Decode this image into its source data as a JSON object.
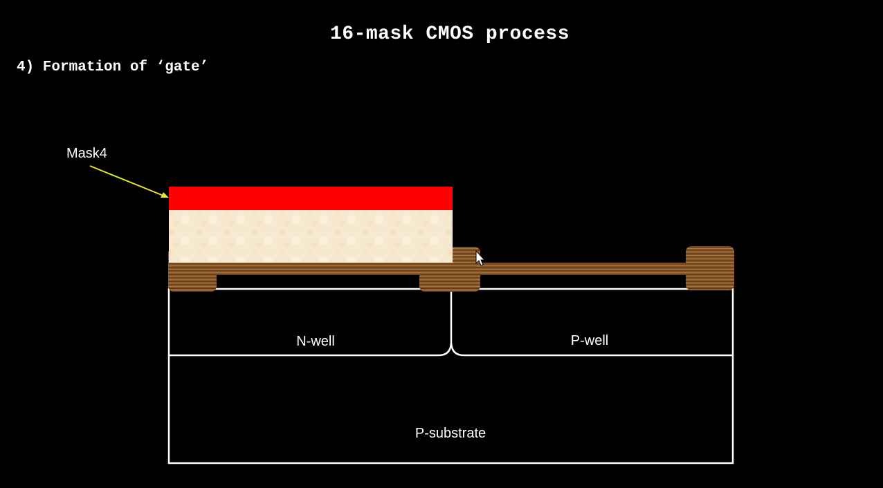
{
  "slide": {
    "title": "16-mask CMOS process",
    "step": "4) Formation of ‘gate’"
  },
  "diagram": {
    "mask_label": "Mask4",
    "labels": {
      "n_well": "N-well",
      "p_well": "P-well",
      "p_substrate": "P-substrate"
    }
  },
  "colors": {
    "background": "#000000",
    "mask": "#ff0000",
    "photoresist": "#f7e9cf",
    "oxide_wood": "#8a5a2b",
    "pointer_arrow": "#e6e62e",
    "outline": "#ffffff"
  }
}
